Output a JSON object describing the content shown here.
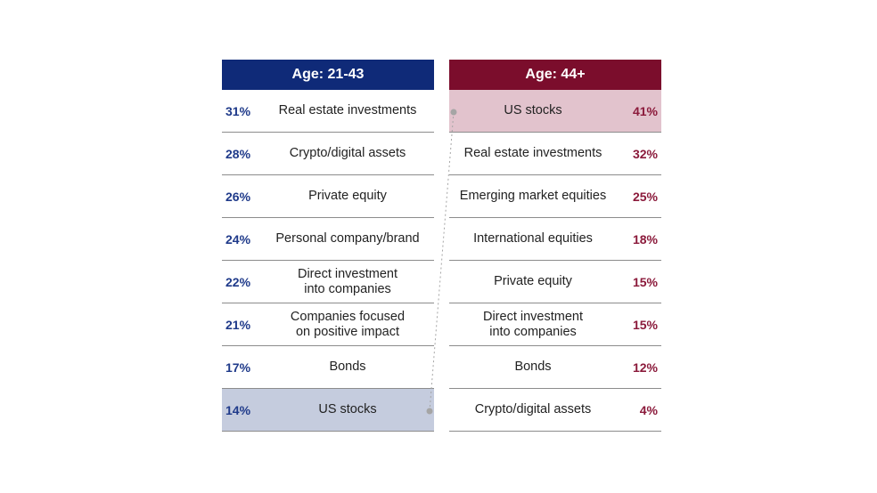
{
  "left": {
    "header": "Age: 21-43",
    "rows": [
      {
        "pct": "31%",
        "label": "Real estate investments"
      },
      {
        "pct": "28%",
        "label": "Crypto/digital assets"
      },
      {
        "pct": "26%",
        "label": "Private equity"
      },
      {
        "pct": "24%",
        "label": "Personal company/brand"
      },
      {
        "pct": "22%",
        "label": "Direct investment\ninto companies"
      },
      {
        "pct": "21%",
        "label": "Companies focused\non positive impact"
      },
      {
        "pct": "17%",
        "label": "Bonds"
      },
      {
        "pct": "14%",
        "label": "US stocks"
      }
    ]
  },
  "right": {
    "header": "Age: 44+",
    "rows": [
      {
        "pct": "41%",
        "label": "US stocks"
      },
      {
        "pct": "32%",
        "label": "Real estate investments"
      },
      {
        "pct": "25%",
        "label": "Emerging market equities"
      },
      {
        "pct": "18%",
        "label": "International equities"
      },
      {
        "pct": "15%",
        "label": "Private equity"
      },
      {
        "pct": "15%",
        "label": "Direct investment\ninto companies"
      },
      {
        "pct": "12%",
        "label": "Bonds"
      },
      {
        "pct": "4%",
        "label": "Crypto/digital assets"
      }
    ]
  },
  "colors": {
    "left_header": "#0f2a78",
    "right_header": "#7b0d2c",
    "left_highlight": "#c5ccde",
    "right_highlight": "#e2c3cd"
  }
}
